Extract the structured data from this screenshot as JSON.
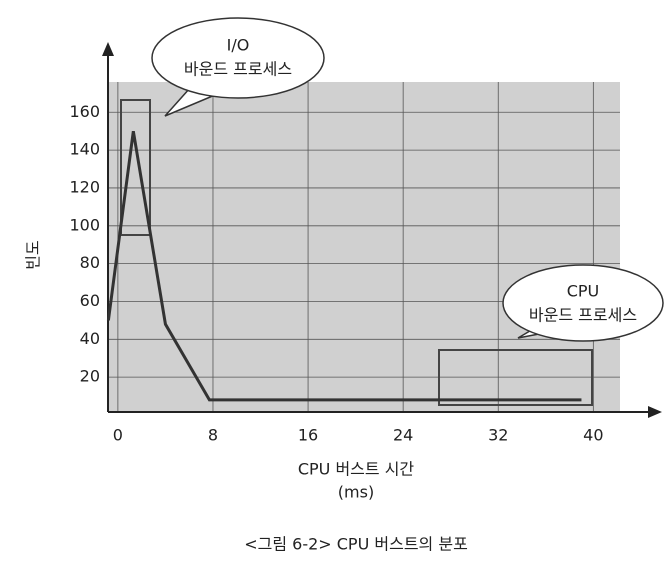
{
  "chart_data": {
    "type": "line",
    "caption": "<그림 6-2> CPU 버스트의 분포",
    "x_label": "CPU 버스트 시간",
    "x_unit": "(ms)",
    "y_label": "빈도",
    "annotations": [
      {
        "lines": [
          "I/O",
          "바운드 프로세스"
        ]
      },
      {
        "lines": [
          "CPU",
          "바운드 프로세스"
        ]
      }
    ],
    "x": [
      -0.8,
      1.3,
      4,
      7.7,
      39
    ],
    "series": [
      {
        "color": "#333333",
        "values": [
          50,
          150,
          48,
          8,
          8
        ]
      }
    ],
    "xlim": [
      -1,
      43
    ],
    "xticks": [
      0,
      8,
      16,
      24,
      32,
      40
    ],
    "ylim": [
      0,
      176
    ],
    "yticks": [
      20,
      40,
      60,
      80,
      100,
      120,
      140,
      160
    ],
    "grid": true
  }
}
